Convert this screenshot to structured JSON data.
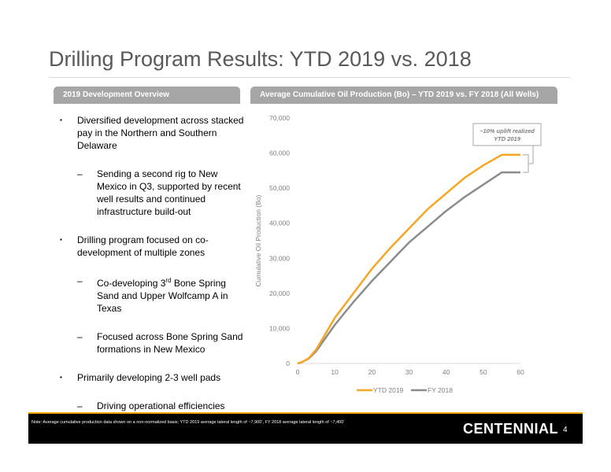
{
  "page": {
    "title": "Drilling Program Results: YTD 2019 vs. 2018",
    "left_header": "2019 Development Overview",
    "right_header": "Average Cumulative Oil Production (Bo) – YTD 2019 vs. FY 2018 (All Wells)",
    "note": "Note: Average cumulative production data shown on a non-normalized basis; YTD 2019 average lateral length of ~7,900’, FY 2018 average lateral length of ~7,400’",
    "logo": "CENTENNIAL",
    "page_number": "4",
    "bullet_mark": "▪",
    "dash_mark": "–"
  },
  "bullets": [
    {
      "text": "Diversified development across stacked pay in the Northern and Southern Delaware"
    },
    {
      "text": "Sending a second rig to New Mexico in Q3, supported by recent well results and continued infrastructure build-out"
    },
    {
      "text": "Drilling program focused on co-development of multiple zones"
    },
    {
      "pre": "Co-developing 3",
      "sup": "rd",
      "post": " Bone Spring Sand and Upper Wolfcamp A in Texas"
    },
    {
      "text": "Focused across Bone Spring Sand formations in New Mexico"
    },
    {
      "text": "Primarily developing 2-3 well pads"
    },
    {
      "text": "Driving operational efficiencies while minimizing downtime and interference"
    }
  ],
  "chart_data": {
    "type": "line",
    "title": "Average Cumulative Oil Production (Bo) – YTD 2019 vs. FY 2018 (All Wells)",
    "xlabel": "",
    "ylabel": "Cumulative Oil Production (Bo)",
    "xlim": [
      0,
      60
    ],
    "ylim": [
      0,
      70000
    ],
    "xticks": [
      0,
      10,
      20,
      30,
      40,
      50,
      60
    ],
    "yticks": [
      0,
      10000,
      20000,
      30000,
      40000,
      50000,
      60000,
      70000
    ],
    "ytick_labels": [
      "0",
      "10,000",
      "20,000",
      "30,000",
      "40,000",
      "50,000",
      "60,000",
      "70,000"
    ],
    "grid": false,
    "legend": "bottom",
    "annotation": "~10% uplift realized YTD 2019",
    "annotation_lines": [
      "~10% uplift realized",
      "YTD 2019"
    ],
    "series": [
      {
        "name": "YTD 2019",
        "color": "#f5a623",
        "x": [
          0,
          1,
          3,
          5,
          10,
          15,
          20,
          25,
          30,
          35,
          40,
          45,
          50,
          55,
          60
        ],
        "y": [
          0,
          300,
          1500,
          4000,
          13000,
          20000,
          27000,
          33000,
          38500,
          44000,
          48500,
          53000,
          56500,
          59500,
          59500
        ]
      },
      {
        "name": "FY 2018",
        "color": "#8c8c8c",
        "x": [
          0,
          1,
          3,
          5,
          10,
          15,
          20,
          25,
          30,
          35,
          40,
          45,
          50,
          55,
          60
        ],
        "y": [
          0,
          300,
          1400,
          3500,
          11000,
          17500,
          23500,
          29000,
          34500,
          39000,
          43500,
          47500,
          51000,
          54500,
          54500
        ]
      }
    ]
  }
}
